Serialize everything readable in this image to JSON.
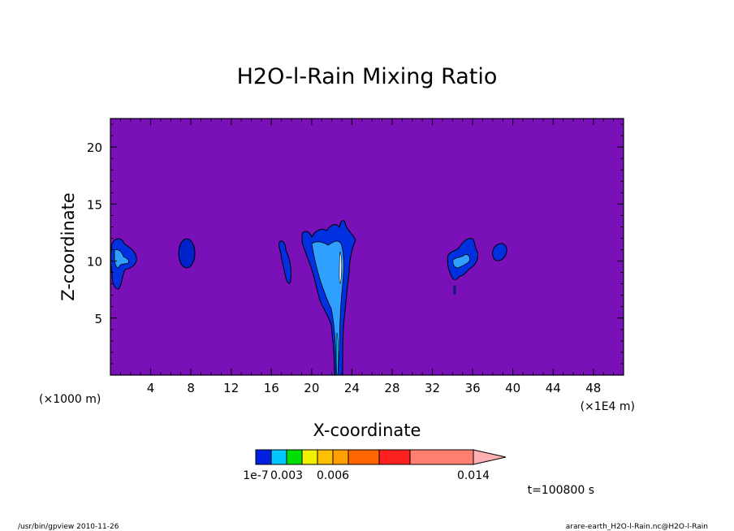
{
  "chart_data": {
    "type": "contour",
    "title": "H2O-l-Rain Mixing Ratio",
    "xlabel": "X-coordinate",
    "ylabel": "Z-coordinate",
    "x_unit_left": "(×1000 m)",
    "x_unit_right": "(×1E4 m)",
    "x_ticks": [
      4,
      8,
      12,
      16,
      20,
      24,
      28,
      32,
      36,
      40,
      44,
      48
    ],
    "y_ticks": [
      5,
      10,
      15,
      20
    ],
    "xlim": [
      0,
      51
    ],
    "ylim": [
      0,
      22.5
    ],
    "background_color": "#7a10b8",
    "time_label": "t=100800 s",
    "colorbar": {
      "tick_labels": [
        "1e-7",
        "0.003",
        "0.006",
        "0.014"
      ],
      "colors": [
        "#0020e0",
        "#00c8ff",
        "#00e000",
        "#f0f000",
        "#ffc000",
        "#ffa000",
        "#ff6600",
        "#ff2020",
        "#ff8070",
        "#ffb0b0"
      ]
    },
    "features": [
      {
        "name": "rain-blob-west",
        "x": 0.8,
        "z": 10.3
      },
      {
        "name": "rain-blob-8",
        "x": 7.7,
        "z": 10.8
      },
      {
        "name": "rain-blob-17",
        "x": 17.3,
        "z": 10.5
      },
      {
        "name": "rain-column-22",
        "x": 22.5,
        "z": 8.0
      },
      {
        "name": "rain-blob-35",
        "x": 35.0,
        "z": 10.3
      },
      {
        "name": "rain-blob-39",
        "x": 39.0,
        "z": 11.0
      }
    ]
  },
  "footer": {
    "left": "/usr/bin/gpview   2010-11-26",
    "right": "arare-earth_H2O-l-Rain.nc@H2O-l-Rain"
  }
}
